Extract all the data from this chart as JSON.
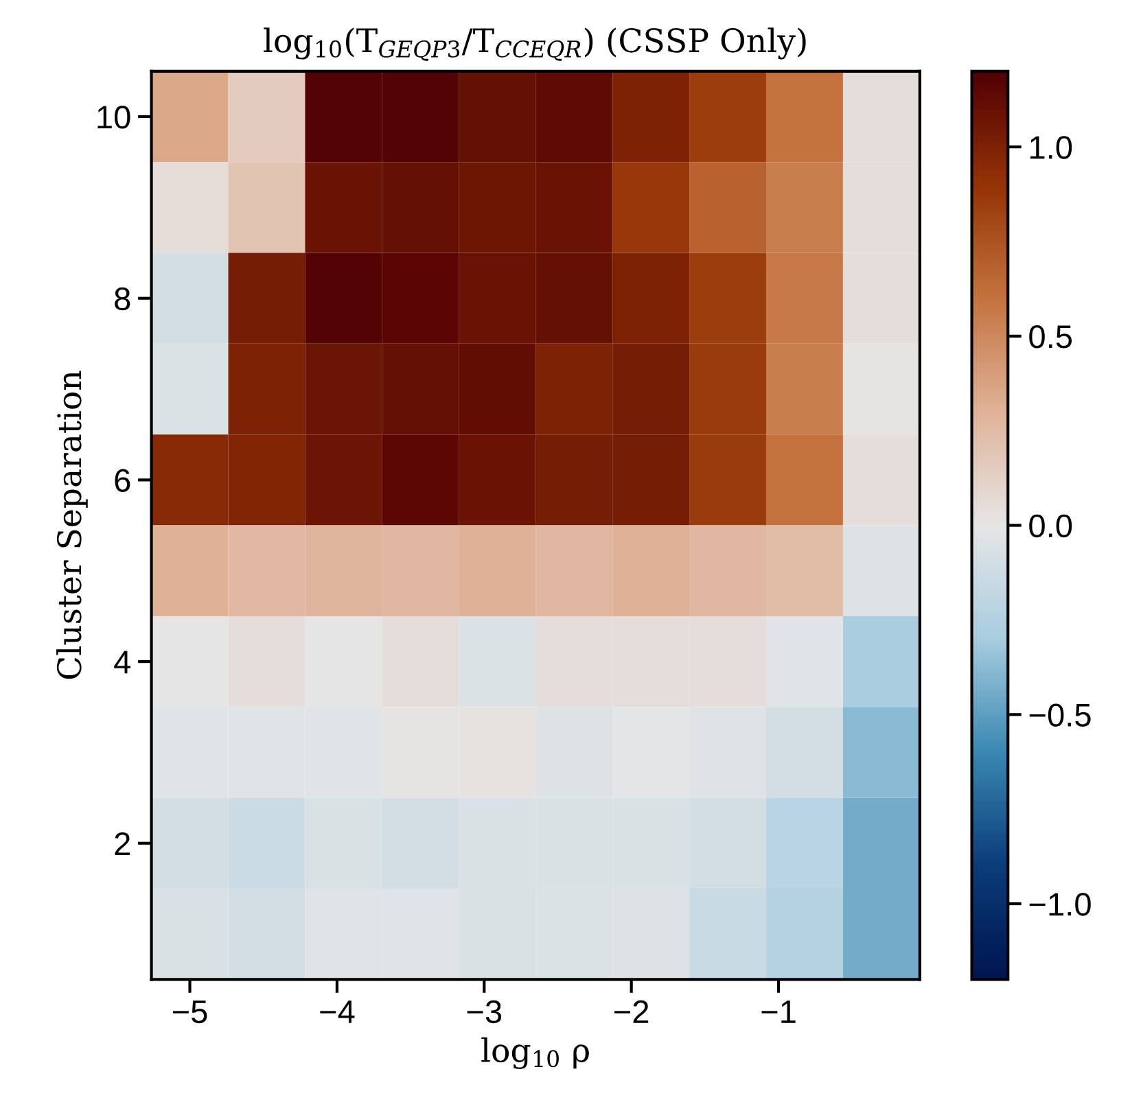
{
  "chart_data": {
    "type": "heatmap",
    "title": "log$_{10}$(T$_{GEQP3}$/T$_{CCEQR}$) (CSSP Only)",
    "xlabel": "log$_{10}$ ρ",
    "ylabel": "Cluster Separation",
    "x": [
      -5.0,
      -4.478,
      -3.956,
      -3.434,
      -2.912,
      -2.389,
      -1.867,
      -1.345,
      -0.823,
      -0.301
    ],
    "y": [
      10,
      9,
      8,
      7,
      6,
      5,
      4,
      3,
      2,
      1
    ],
    "cells": [
      [
        0.35,
        0.15,
        1.18,
        1.18,
        1.1,
        1.13,
        1.0,
        0.85,
        0.6,
        0.05
      ],
      [
        0.06,
        0.2,
        1.08,
        1.1,
        1.06,
        1.08,
        0.88,
        0.68,
        0.55,
        0.05
      ],
      [
        -0.1,
        1.03,
        1.18,
        1.16,
        1.08,
        1.1,
        1.0,
        0.85,
        0.57,
        0.05
      ],
      [
        -0.05,
        1.0,
        1.07,
        1.1,
        1.12,
        1.0,
        1.03,
        0.86,
        0.55,
        0.01
      ],
      [
        0.95,
        0.98,
        1.07,
        1.15,
        1.08,
        1.03,
        1.03,
        0.86,
        0.6,
        0.05
      ],
      [
        0.3,
        0.27,
        0.29,
        0.28,
        0.3,
        0.28,
        0.3,
        0.28,
        0.25,
        -0.04
      ],
      [
        0.0,
        0.05,
        0.0,
        0.05,
        -0.05,
        0.05,
        0.05,
        0.05,
        -0.02,
        -0.3
      ],
      [
        -0.02,
        -0.02,
        -0.02,
        0.01,
        0.02,
        -0.04,
        -0.01,
        -0.03,
        -0.1,
        -0.38
      ],
      [
        -0.1,
        -0.14,
        -0.06,
        -0.1,
        -0.06,
        -0.06,
        -0.06,
        -0.1,
        -0.22,
        -0.45
      ],
      [
        -0.06,
        -0.1,
        -0.02,
        -0.02,
        -0.06,
        -0.05,
        -0.04,
        -0.15,
        -0.24,
        -0.45
      ]
    ],
    "colors": [
      "#001550",
      "#0b3d7a",
      "#3a88b2",
      "#a9cde0",
      "#e6e6e6",
      "#e0b39a",
      "#c4743f",
      "#943305",
      "#500004"
    ],
    "clim": [
      -1.2,
      1.2
    ],
    "cticks": [
      {
        "value": -1.0,
        "label": "−1.0"
      },
      {
        "value": -0.5,
        "label": "−0.5"
      },
      {
        "value": 0.0,
        "label": "0.0"
      },
      {
        "value": 0.5,
        "label": "0.5"
      },
      {
        "value": 1.0,
        "label": "1.0"
      }
    ],
    "xlim": [
      -5.261,
      -0.04
    ],
    "ylim": [
      0.5,
      10.5
    ],
    "xticks": [
      {
        "value": -5,
        "label": "−5"
      },
      {
        "value": -4,
        "label": "−4"
      },
      {
        "value": -3,
        "label": "−3"
      },
      {
        "value": -2,
        "label": "−2"
      },
      {
        "value": -1,
        "label": "−1"
      }
    ],
    "yticks": [
      2,
      4,
      6,
      8,
      10
    ],
    "grid": false
  }
}
